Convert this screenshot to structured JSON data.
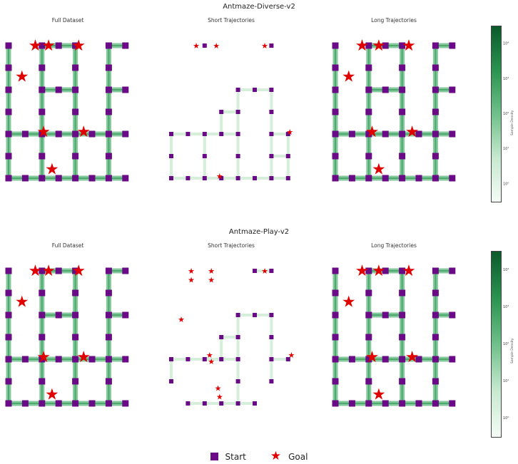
{
  "rows": [
    {
      "title": "Antmaze-Diverse-v2",
      "panels": [
        {
          "title": "Full Dataset",
          "starts": [
            [
              0,
              0
            ],
            [
              2,
              0
            ],
            [
              3,
              0
            ],
            [
              4,
              0
            ],
            [
              6,
              0
            ],
            [
              7,
              0
            ],
            [
              0,
              1
            ],
            [
              2,
              1
            ],
            [
              4,
              1
            ],
            [
              6,
              1
            ],
            [
              0,
              2
            ],
            [
              2,
              2
            ],
            [
              3,
              2
            ],
            [
              4,
              2
            ],
            [
              6,
              2
            ],
            [
              7,
              2
            ],
            [
              0,
              3
            ],
            [
              2,
              3
            ],
            [
              4,
              3
            ],
            [
              6,
              3
            ],
            [
              0,
              4
            ],
            [
              1,
              4
            ],
            [
              2,
              4
            ],
            [
              3,
              4
            ],
            [
              4,
              4
            ],
            [
              5,
              4
            ],
            [
              6,
              4
            ],
            [
              7,
              4
            ],
            [
              0,
              5
            ],
            [
              2,
              5
            ],
            [
              4,
              5
            ],
            [
              6,
              5
            ],
            [
              0,
              6
            ],
            [
              1,
              6
            ],
            [
              2,
              6
            ],
            [
              3,
              6
            ],
            [
              4,
              6
            ],
            [
              5,
              6
            ],
            [
              6,
              6
            ],
            [
              7,
              6
            ]
          ],
          "goals": [
            [
              1.6,
              0
            ],
            [
              2.4,
              0
            ],
            [
              4.2,
              0
            ],
            [
              0.8,
              1.4
            ],
            [
              2.1,
              3.9
            ],
            [
              4.5,
              3.9
            ],
            [
              2.6,
              5.6
            ]
          ]
        },
        {
          "title": "Short Trajectories",
          "starts": [
            [
              2,
              0
            ],
            [
              6,
              0
            ],
            [
              4,
              2
            ],
            [
              5,
              2
            ],
            [
              6,
              2
            ],
            [
              3,
              3
            ],
            [
              4,
              3
            ],
            [
              6,
              3
            ],
            [
              0,
              4
            ],
            [
              1,
              4
            ],
            [
              2,
              4
            ],
            [
              3,
              4
            ],
            [
              4,
              4
            ],
            [
              6,
              4
            ],
            [
              7,
              4
            ],
            [
              0,
              5
            ],
            [
              2,
              5
            ],
            [
              4,
              5
            ],
            [
              6,
              5
            ],
            [
              7,
              5
            ],
            [
              0,
              6
            ],
            [
              1,
              6
            ],
            [
              2,
              6
            ],
            [
              3,
              6
            ],
            [
              4,
              6
            ],
            [
              5,
              6
            ],
            [
              6,
              6
            ],
            [
              7,
              6
            ]
          ],
          "goals": [
            [
              1.5,
              0
            ],
            [
              2.7,
              0
            ],
            [
              5.6,
              0
            ],
            [
              7.1,
              3.9
            ],
            [
              2.9,
              5.9
            ]
          ]
        },
        {
          "title": "Long Trajectories",
          "starts": [
            [
              0,
              0
            ],
            [
              2,
              0
            ],
            [
              3,
              0
            ],
            [
              4,
              0
            ],
            [
              6,
              0
            ],
            [
              7,
              0
            ],
            [
              0,
              1
            ],
            [
              2,
              1
            ],
            [
              4,
              1
            ],
            [
              6,
              1
            ],
            [
              0,
              2
            ],
            [
              2,
              2
            ],
            [
              3,
              2
            ],
            [
              4,
              2
            ],
            [
              6,
              2
            ],
            [
              7,
              2
            ],
            [
              0,
              3
            ],
            [
              2,
              3
            ],
            [
              4,
              3
            ],
            [
              6,
              3
            ],
            [
              0,
              4
            ],
            [
              1,
              4
            ],
            [
              2,
              4
            ],
            [
              3,
              4
            ],
            [
              4,
              4
            ],
            [
              5,
              4
            ],
            [
              6,
              4
            ],
            [
              7,
              4
            ],
            [
              0,
              5
            ],
            [
              2,
              5
            ],
            [
              4,
              5
            ],
            [
              6,
              5
            ],
            [
              0,
              6
            ],
            [
              1,
              6
            ],
            [
              2,
              6
            ],
            [
              3,
              6
            ],
            [
              4,
              6
            ],
            [
              5,
              6
            ],
            [
              6,
              6
            ],
            [
              7,
              6
            ]
          ],
          "goals": [
            [
              1.6,
              0
            ],
            [
              2.6,
              0
            ],
            [
              4.4,
              0
            ],
            [
              0.8,
              1.4
            ],
            [
              2.2,
              3.9
            ],
            [
              4.6,
              3.9
            ],
            [
              2.6,
              5.6
            ]
          ]
        }
      ]
    },
    {
      "title": "Antmaze-Play-v2",
      "panels": [
        {
          "title": "Full Dataset",
          "starts": [
            [
              0,
              0
            ],
            [
              2,
              0
            ],
            [
              3,
              0
            ],
            [
              4,
              0
            ],
            [
              6,
              0
            ],
            [
              7,
              0
            ],
            [
              0,
              1
            ],
            [
              2,
              1
            ],
            [
              4,
              1
            ],
            [
              6,
              1
            ],
            [
              0,
              2
            ],
            [
              2,
              2
            ],
            [
              3,
              2
            ],
            [
              4,
              2
            ],
            [
              6,
              2
            ],
            [
              7,
              2
            ],
            [
              0,
              3
            ],
            [
              2,
              3
            ],
            [
              4,
              3
            ],
            [
              6,
              3
            ],
            [
              0,
              4
            ],
            [
              1,
              4
            ],
            [
              2,
              4
            ],
            [
              3,
              4
            ],
            [
              4,
              4
            ],
            [
              5,
              4
            ],
            [
              6,
              4
            ],
            [
              7,
              4
            ],
            [
              0,
              5
            ],
            [
              2,
              5
            ],
            [
              4,
              5
            ],
            [
              6,
              5
            ],
            [
              0,
              6
            ],
            [
              1,
              6
            ],
            [
              2,
              6
            ],
            [
              3,
              6
            ],
            [
              4,
              6
            ],
            [
              5,
              6
            ],
            [
              6,
              6
            ],
            [
              7,
              6
            ]
          ],
          "goals": [
            [
              1.6,
              0
            ],
            [
              2.4,
              0
            ],
            [
              4.2,
              0
            ],
            [
              0.8,
              1.4
            ],
            [
              2.1,
              3.9
            ],
            [
              4.5,
              3.9
            ],
            [
              2.6,
              5.6
            ]
          ]
        },
        {
          "title": "Short Trajectories",
          "starts": [
            [
              5,
              0
            ],
            [
              6,
              0
            ],
            [
              4,
              2
            ],
            [
              5,
              2
            ],
            [
              6,
              2
            ],
            [
              3,
              3
            ],
            [
              4,
              3
            ],
            [
              6,
              3
            ],
            [
              0,
              4
            ],
            [
              1,
              4
            ],
            [
              2,
              4
            ],
            [
              3,
              4
            ],
            [
              4,
              4
            ],
            [
              6,
              4
            ],
            [
              7,
              4
            ],
            [
              0,
              5
            ],
            [
              4,
              5
            ],
            [
              6,
              5
            ],
            [
              1,
              6
            ],
            [
              2,
              6
            ],
            [
              3,
              6
            ],
            [
              4,
              6
            ],
            [
              5,
              6
            ]
          ],
          "goals": [
            [
              1.2,
              0
            ],
            [
              1.2,
              0.4
            ],
            [
              2.4,
              0
            ],
            [
              2.4,
              0.4
            ],
            [
              5.6,
              0
            ],
            [
              0.6,
              2.2
            ],
            [
              2.3,
              3.8
            ],
            [
              2.4,
              4.1
            ],
            [
              7.2,
              3.8
            ],
            [
              2.8,
              5.3
            ],
            [
              2.9,
              5.7
            ]
          ]
        },
        {
          "title": "Long Trajectories",
          "starts": [
            [
              0,
              0
            ],
            [
              2,
              0
            ],
            [
              3,
              0
            ],
            [
              4,
              0
            ],
            [
              6,
              0
            ],
            [
              7,
              0
            ],
            [
              0,
              1
            ],
            [
              2,
              1
            ],
            [
              4,
              1
            ],
            [
              6,
              1
            ],
            [
              0,
              2
            ],
            [
              2,
              2
            ],
            [
              3,
              2
            ],
            [
              4,
              2
            ],
            [
              6,
              2
            ],
            [
              7,
              2
            ],
            [
              0,
              3
            ],
            [
              2,
              3
            ],
            [
              4,
              3
            ],
            [
              6,
              3
            ],
            [
              0,
              4
            ],
            [
              1,
              4
            ],
            [
              2,
              4
            ],
            [
              3,
              4
            ],
            [
              4,
              4
            ],
            [
              5,
              4
            ],
            [
              6,
              4
            ],
            [
              7,
              4
            ],
            [
              0,
              5
            ],
            [
              2,
              5
            ],
            [
              4,
              5
            ],
            [
              6,
              5
            ],
            [
              0,
              6
            ],
            [
              1,
              6
            ],
            [
              2,
              6
            ],
            [
              3,
              6
            ],
            [
              4,
              6
            ],
            [
              5,
              6
            ],
            [
              6,
              6
            ],
            [
              7,
              6
            ]
          ],
          "goals": [
            [
              1.6,
              0
            ],
            [
              2.6,
              0
            ],
            [
              4.4,
              0
            ],
            [
              0.8,
              1.4
            ],
            [
              2.2,
              3.9
            ],
            [
              4.6,
              3.9
            ],
            [
              2.6,
              5.6
            ]
          ]
        }
      ]
    }
  ],
  "colorbar": {
    "label": "Sample Density",
    "ticks": [
      "10⁰",
      "10¹",
      "10²",
      "10³",
      "10⁴"
    ],
    "scale": "log",
    "colormap": [
      "#f4fbf6",
      "#c7e9cf",
      "#6fc08a",
      "#2a934f",
      "#0b5a2b"
    ]
  },
  "legend": {
    "start_label": "Start",
    "goal_label": "Goal",
    "start_color": "#6b0a86",
    "goal_color": "#e00000"
  },
  "chart_data": {
    "type": "heatmap",
    "facets": [
      "Antmaze-Diverse-v2",
      "Antmaze-Play-v2"
    ],
    "panels": [
      "Full Dataset",
      "Short Trajectories",
      "Long Trajectories"
    ],
    "color_scale": "log",
    "colorbar_ticks": [
      "10⁰",
      "10¹",
      "10²",
      "10³",
      "10⁴"
    ],
    "colorbar_label": "Sample Density",
    "legend": [
      "Start",
      "Goal"
    ],
    "legend_placement": "bottom"
  }
}
